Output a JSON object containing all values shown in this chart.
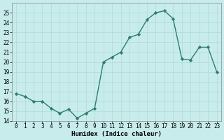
{
  "x": [
    0,
    1,
    2,
    3,
    4,
    5,
    6,
    7,
    8,
    9,
    10,
    11,
    12,
    13,
    14,
    15,
    16,
    17,
    18,
    19,
    20,
    21,
    22,
    23
  ],
  "y": [
    16.8,
    16.5,
    16.0,
    16.0,
    15.3,
    14.8,
    15.2,
    14.3,
    14.8,
    15.3,
    20.0,
    20.5,
    21.0,
    22.5,
    22.8,
    24.3,
    25.0,
    25.2,
    24.4,
    20.3,
    20.2,
    21.5,
    21.5,
    19.0
  ],
  "line_color": "#2e7d6e",
  "marker": "D",
  "markersize": 2.2,
  "linewidth": 1.0,
  "background_color": "#c8ecec",
  "grid_color": "#b0d8d8",
  "xlabel": "Humidex (Indice chaleur)",
  "xlim": [
    -0.5,
    23.5
  ],
  "ylim": [
    14,
    26
  ],
  "yticks": [
    14,
    15,
    16,
    17,
    18,
    19,
    20,
    21,
    22,
    23,
    24,
    25
  ],
  "xticks": [
    0,
    1,
    2,
    3,
    4,
    5,
    6,
    7,
    8,
    9,
    10,
    11,
    12,
    13,
    14,
    15,
    16,
    17,
    18,
    19,
    20,
    21,
    22,
    23
  ],
  "tick_fontsize": 5.5,
  "xlabel_fontsize": 6.5
}
